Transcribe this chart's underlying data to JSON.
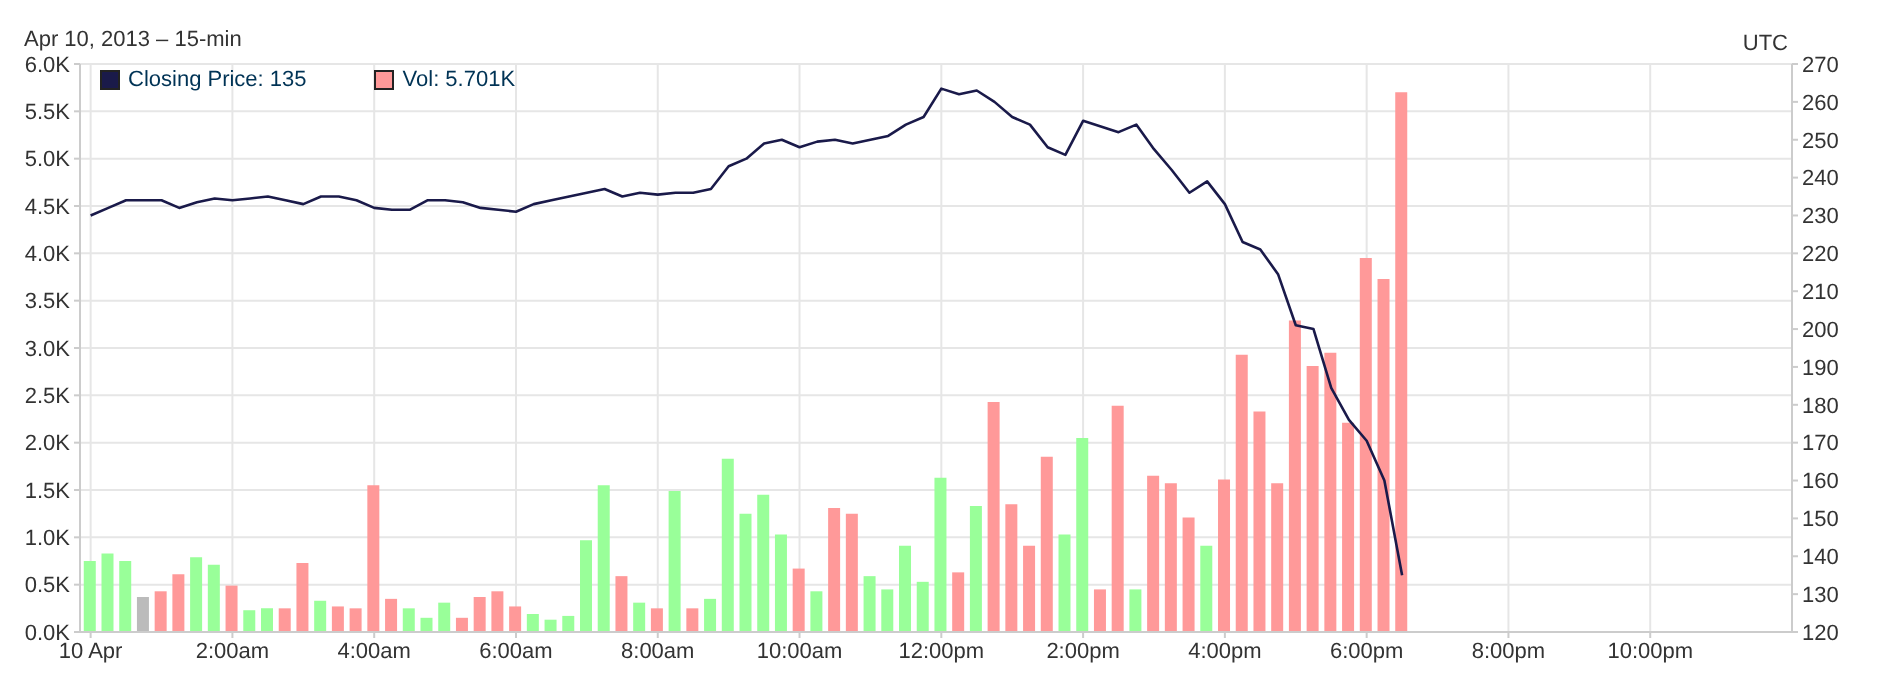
{
  "chart_data": {
    "type": "bar",
    "subtitle": "Apr 10, 2013 – 15-min",
    "annotations": [
      "UTC"
    ],
    "x": [
      0,
      0.25,
      0.5,
      0.75,
      1,
      1.25,
      1.5,
      1.75,
      2,
      2.25,
      2.5,
      2.75,
      3,
      3.25,
      3.5,
      3.75,
      4,
      4.25,
      4.5,
      4.75,
      5,
      5.25,
      5.5,
      5.75,
      6,
      6.25,
      6.5,
      6.75,
      7,
      7.25,
      7.5,
      7.75,
      8,
      8.25,
      8.5,
      8.75,
      9,
      9.25,
      9.5,
      9.75,
      10,
      10.25,
      10.5,
      10.75,
      11,
      11.25,
      11.5,
      11.75,
      12,
      12.25,
      12.5,
      12.75,
      13,
      13.25,
      13.5,
      13.75,
      14,
      14.25,
      14.5,
      14.75,
      15,
      15.25,
      15.5,
      15.75,
      16,
      16.25,
      16.5,
      16.75,
      17,
      17.25,
      17.5,
      17.75,
      18,
      18.25,
      18.5
    ],
    "series": [
      {
        "name": "Closing Price: 135",
        "type": "line",
        "axis": "y2",
        "color": "#1a1a4a",
        "values": [
          230,
          232,
          234,
          234,
          234,
          232,
          233.5,
          234.5,
          234,
          234.5,
          235,
          234,
          233,
          235,
          235,
          234,
          232,
          231.5,
          231.5,
          234,
          234,
          233.5,
          232,
          231.5,
          231,
          233,
          234,
          235,
          236,
          237,
          235,
          236,
          235.5,
          236,
          236,
          237,
          243,
          245,
          249,
          250,
          248,
          249.5,
          250,
          249,
          250,
          251,
          254,
          256,
          263.5,
          262,
          263,
          260,
          256,
          254,
          248,
          246,
          255,
          253.5,
          252,
          254,
          247.5,
          242,
          236,
          239,
          233,
          223,
          221,
          214.5,
          201,
          200,
          184.5,
          176,
          170.5,
          160,
          135
        ]
      },
      {
        "name": "Vol: 5.701K",
        "color": "#ff9999",
        "values": [
          750,
          830,
          750,
          370,
          430,
          610,
          790,
          710,
          490,
          230,
          250,
          250,
          730,
          330,
          270,
          250,
          1550,
          350,
          250,
          150,
          310,
          150,
          370,
          430,
          270,
          190,
          130,
          170,
          970,
          1550,
          590,
          310,
          250,
          1490,
          250,
          350,
          1830,
          1250,
          1450,
          1030,
          670,
          430,
          1310,
          1250,
          590,
          450,
          910,
          530,
          1630,
          630,
          1330,
          2430,
          1350,
          910,
          1850,
          1030,
          2050,
          450,
          2390,
          450,
          1650,
          1570,
          1210,
          910,
          1610,
          2930,
          2330,
          1570,
          3290,
          2810,
          2950,
          2210,
          3950,
          3730,
          5701
        ],
        "colors": [
          "#99ff99",
          "#99ff99",
          "#99ff99",
          "#bbbbbb",
          "#ff9999",
          "#ff9999",
          "#99ff99",
          "#99ff99",
          "#ff9999",
          "#99ff99",
          "#99ff99",
          "#ff9999",
          "#ff9999",
          "#99ff99",
          "#ff9999",
          "#ff9999",
          "#ff9999",
          "#ff9999",
          "#99ff99",
          "#99ff99",
          "#99ff99",
          "#ff9999",
          "#ff9999",
          "#ff9999",
          "#ff9999",
          "#99ff99",
          "#99ff99",
          "#99ff99",
          "#99ff99",
          "#99ff99",
          "#ff9999",
          "#99ff99",
          "#ff9999",
          "#99ff99",
          "#ff9999",
          "#99ff99",
          "#99ff99",
          "#99ff99",
          "#99ff99",
          "#99ff99",
          "#ff9999",
          "#99ff99",
          "#ff9999",
          "#ff9999",
          "#99ff99",
          "#99ff99",
          "#99ff99",
          "#99ff99",
          "#99ff99",
          "#ff9999",
          "#99ff99",
          "#ff9999",
          "#ff9999",
          "#ff9999",
          "#ff9999",
          "#99ff99",
          "#99ff99",
          "#ff9999",
          "#ff9999",
          "#99ff99",
          "#ff9999",
          "#ff9999",
          "#ff9999",
          "#99ff99",
          "#ff9999",
          "#ff9999",
          "#ff9999",
          "#ff9999",
          "#ff9999",
          "#ff9999",
          "#ff9999",
          "#ff9999",
          "#ff9999",
          "#ff9999",
          "#ff9999"
        ]
      }
    ],
    "xlim": [
      -0.15,
      24
    ],
    "xticks": [
      {
        "value": 0,
        "label": "10 Apr"
      },
      {
        "value": 2,
        "label": "2:00am"
      },
      {
        "value": 4,
        "label": "4:00am"
      },
      {
        "value": 6,
        "label": "6:00am"
      },
      {
        "value": 8,
        "label": "8:00am"
      },
      {
        "value": 10,
        "label": "10:00am"
      },
      {
        "value": 12,
        "label": "12:00pm"
      },
      {
        "value": 14,
        "label": "2:00pm"
      },
      {
        "value": 16,
        "label": "4:00pm"
      },
      {
        "value": 18,
        "label": "6:00pm"
      },
      {
        "value": 20,
        "label": "8:00pm"
      },
      {
        "value": 22,
        "label": "10:00pm"
      }
    ],
    "ylim": [
      0,
      6000
    ],
    "yticks": [
      {
        "value": 0,
        "label": "0.0K"
      },
      {
        "value": 500,
        "label": "0.5K"
      },
      {
        "value": 1000,
        "label": "1.0K"
      },
      {
        "value": 1500,
        "label": "1.5K"
      },
      {
        "value": 2000,
        "label": "2.0K"
      },
      {
        "value": 2500,
        "label": "2.5K"
      },
      {
        "value": 3000,
        "label": "3.0K"
      },
      {
        "value": 3500,
        "label": "3.5K"
      },
      {
        "value": 4000,
        "label": "4.0K"
      },
      {
        "value": 4500,
        "label": "4.5K"
      },
      {
        "value": 5000,
        "label": "5.0K"
      },
      {
        "value": 5500,
        "label": "5.5K"
      },
      {
        "value": 6000,
        "label": "6.0K"
      }
    ],
    "y2lim": [
      120,
      270
    ],
    "y2ticks": [
      120,
      130,
      140,
      150,
      160,
      170,
      180,
      190,
      200,
      210,
      220,
      230,
      240,
      250,
      260,
      270
    ],
    "grid": true,
    "legend": "top left"
  }
}
